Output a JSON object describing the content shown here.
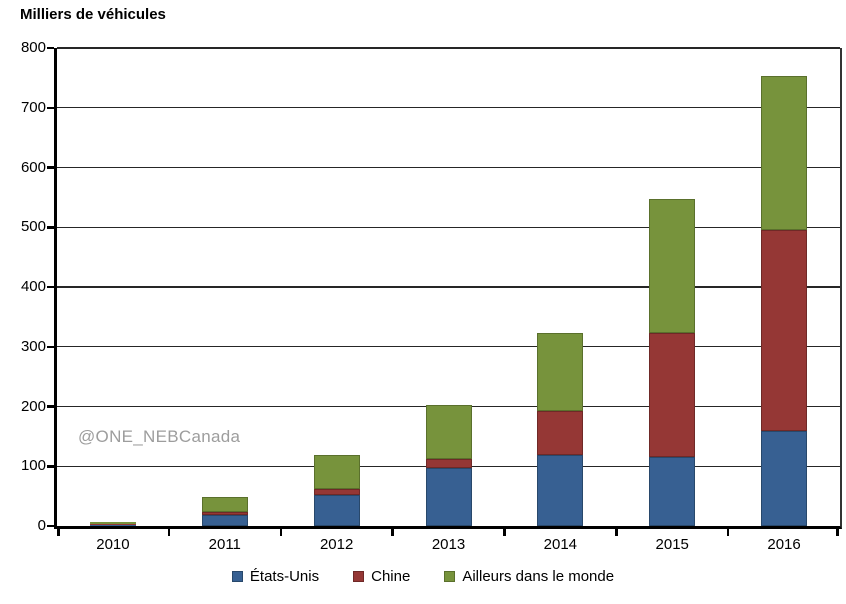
{
  "title": "Milliers de véhicules",
  "watermark": "@ONE_NEBCanada",
  "chart_data": {
    "type": "bar",
    "stacked": true,
    "title": "Milliers de véhicules",
    "xlabel": "",
    "ylabel": "Milliers de véhicules",
    "categories": [
      "2010",
      "2011",
      "2012",
      "2013",
      "2014",
      "2015",
      "2016"
    ],
    "series": [
      {
        "name": "États-Unis",
        "color": "#376092",
        "border_color": "#28486b",
        "values": [
          1.2,
          17.7,
          52.6,
          97.1,
          118.9,
          115.3,
          159.6
        ]
      },
      {
        "name": "Chine",
        "color": "#953735",
        "border_color": "#6f2927",
        "values": [
          1.5,
          5.1,
          9.9,
          15.5,
          73.0,
          207.0,
          336.0
        ]
      },
      {
        "name": "Ailleurs dans le monde",
        "color": "#77933C",
        "border_color": "#5a702c",
        "values": [
          4.5,
          25.4,
          55.8,
          90.0,
          131.0,
          224.7,
          258.4
        ]
      }
    ],
    "ylim": [
      0,
      800
    ],
    "yticks": [
      0,
      100,
      200,
      300,
      400,
      500,
      600,
      700,
      800
    ],
    "grid": true,
    "legend_position": "bottom"
  },
  "colors": {
    "background": "#ffffff",
    "axis": "#000000",
    "gridline": "#262626",
    "watermark": "#9d9d9d"
  }
}
